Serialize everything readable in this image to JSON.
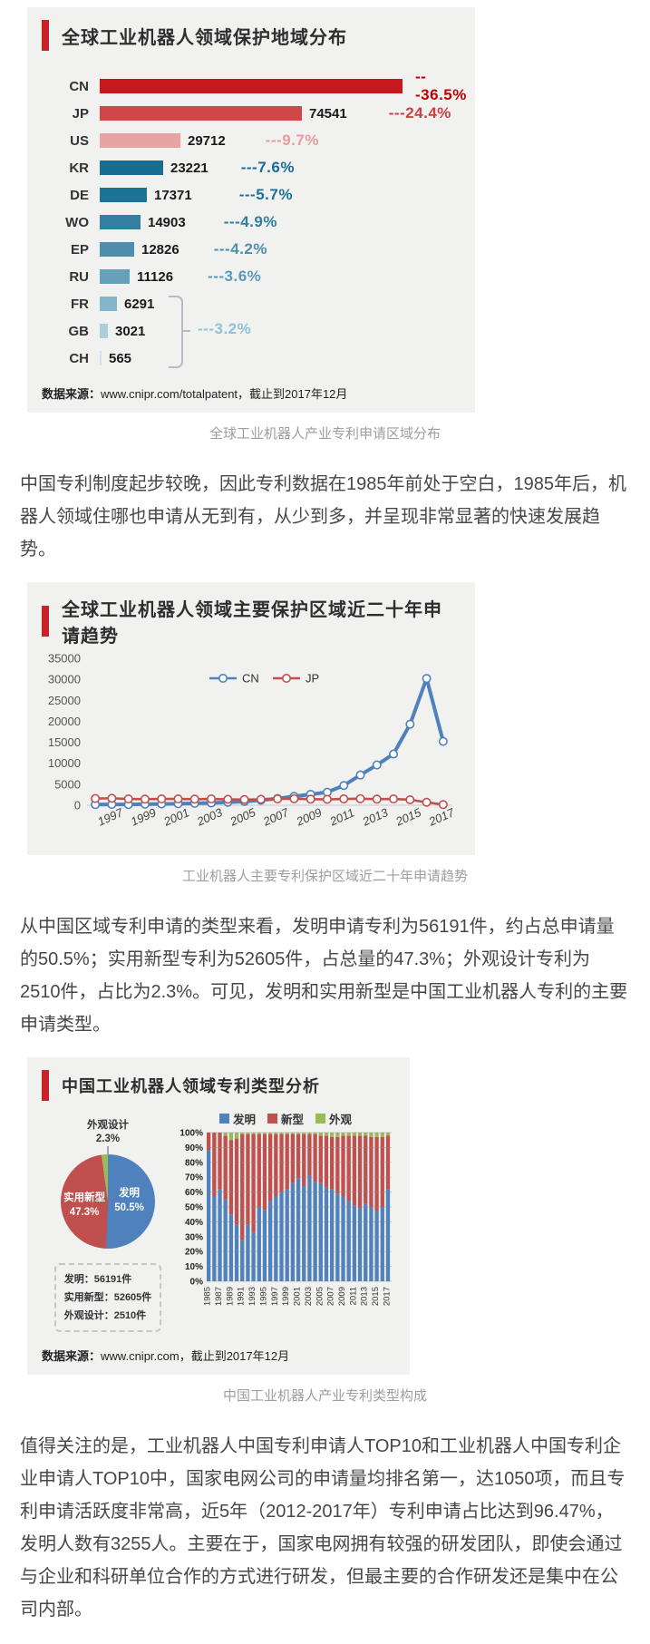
{
  "cards": {
    "c1": {
      "source_label": "数据来源：",
      "source_text": "www.cnipr.com/totalpatent，截止到2017年12月"
    },
    "c3": {
      "source_label": "数据来源：",
      "source_text": "www.cnipr.com，截止到2017年12月",
      "info_lines": [
        "发明：56191件",
        "实用新型：52605件",
        "外观设计：2510件"
      ],
      "legend": [
        "发明",
        "新型",
        "外观"
      ]
    }
  },
  "captions": {
    "c1": "全球工业机器人产业专利申请区域分布",
    "c2": "工业机器人主要专利保护区域近二十年申请趋势",
    "c3": "中国工业机器人产业专利类型构成"
  },
  "paragraphs": {
    "p1": "中国专利制度起步较晚，因此专利数据在1985年前处于空白，1985年后，机器人领域住哪也申请从无到有，从少到多，并呈现非常显著的快速发展趋势。",
    "p2": "从中国区域专利申请的类型来看，发明申请专利为56191件，约占总申请量的50.5%；实用新型专利为52605件，占总量的47.3%；外观设计专利为2510件，占比为2.3%。可见，发明和实用新型是中国工业机器人专利的主要申请类型。",
    "p3": "值得关注的是，工业机器人中国专利申请人TOP10和工业机器人中国专利企业申请人TOP10中，国家电网公司的申请量均排名第一，达1050项，而且专利申请活跃度非常高，近5年（2012-2017年）专利申请占比达到96.47%，发明人数有3255人。主要在于，国家电网拥有较强的研发团队，即使会通过与企业和科研单位合作的方式进行研发，但最主要的合作研发还是集中在公司内部。"
  },
  "chart_data": [
    {
      "type": "bar",
      "title": "全球工业机器人领域保护地域分布",
      "orientation": "horizontal",
      "max_value": 111506,
      "rows": [
        {
          "label": "CN",
          "value": 111506,
          "value_label": "",
          "pct_label": "---36.5%",
          "bar_color": "#c9171e",
          "pct_color": "#c00000",
          "pct_gap": 14
        },
        {
          "label": "JP",
          "value": 74541,
          "value_label": "74541",
          "pct_label": "---24.4%",
          "bar_color": "#d14747",
          "pct_color": "#cf4040",
          "pct_gap": 46
        },
        {
          "label": "US",
          "value": 29712,
          "value_label": "29712",
          "pct_label": "---9.7%",
          "bar_color": "#e8a3a3",
          "pct_color": "#e59d9d",
          "pct_gap": 44
        },
        {
          "label": "KR",
          "value": 23221,
          "value_label": "23221",
          "pct_label": "---7.6%",
          "bar_color": "#196d90",
          "pct_color": "#176d92",
          "pct_gap": 36
        },
        {
          "label": "DE",
          "value": 17371,
          "value_label": "17371",
          "pct_label": "---5.7%",
          "bar_color": "#1d7394",
          "pct_color": "#1d7394",
          "pct_gap": 52
        },
        {
          "label": "WO",
          "value": 14903,
          "value_label": "14903",
          "pct_label": "---4.9%",
          "bar_color": "#337fa2",
          "pct_color": "#2f7fa3",
          "pct_gap": 42
        },
        {
          "label": "EP",
          "value": 12826,
          "value_label": "12826",
          "pct_label": "---4.2%",
          "bar_color": "#4e8fae",
          "pct_color": "#4e8fae",
          "pct_gap": 38
        },
        {
          "label": "RU",
          "value": 11126,
          "value_label": "11126",
          "pct_label": "---3.6%",
          "bar_color": "#66a1bc",
          "pct_color": "#579ab8",
          "pct_gap": 38
        },
        {
          "label": "FR",
          "value": 6291,
          "value_label": "6291",
          "pct_label": "",
          "bar_color": "#85b5cb",
          "pct_color": "",
          "pct_gap": 0
        },
        {
          "label": "GB",
          "value": 3021,
          "value_label": "3021",
          "pct_label": "",
          "bar_color": "#abcddd",
          "pct_color": "",
          "pct_gap": 0
        },
        {
          "label": "CH",
          "value": 565,
          "value_label": "565",
          "pct_label": "",
          "bar_color": "#cfe3ec",
          "pct_color": "",
          "pct_gap": 0
        }
      ],
      "group_bracket": {
        "rows": [
          "FR",
          "GB",
          "CH"
        ],
        "pct_label": "---3.2%",
        "pct_color": "#8ec2d6"
      }
    },
    {
      "type": "line",
      "title": "全球工业机器人领域主要保护区域近二十年申请趋势",
      "x": [
        1996,
        1997,
        1998,
        1999,
        2000,
        2001,
        2002,
        2003,
        2004,
        2005,
        2006,
        2007,
        2008,
        2009,
        2010,
        2011,
        2012,
        2013,
        2014,
        2015,
        2016,
        2017
      ],
      "x_tick_labels": [
        "1997",
        "1999",
        "2001",
        "2003",
        "2005",
        "2007",
        "2009",
        "2011",
        "2013",
        "2015",
        "2017"
      ],
      "ylim": [
        0,
        35000
      ],
      "y_ticks": [
        0,
        5000,
        10000,
        15000,
        20000,
        25000,
        30000,
        35000
      ],
      "grid": false,
      "legend_position": "top-center",
      "series": [
        {
          "name": "CN",
          "color": "#4f81bd",
          "stroke_width": 4,
          "values": [
            150,
            200,
            180,
            250,
            300,
            350,
            450,
            550,
            700,
            900,
            1200,
            1600,
            2100,
            2600,
            3100,
            4700,
            7200,
            9600,
            12200,
            19300,
            30200,
            15200
          ]
        },
        {
          "name": "JP",
          "color": "#c0504d",
          "stroke_width": 2.6,
          "values": [
            1600,
            1650,
            1500,
            1450,
            1500,
            1500,
            1450,
            1500,
            1400,
            1350,
            1400,
            1500,
            1550,
            1450,
            1400,
            1500,
            1550,
            1450,
            1500,
            1300,
            700,
            150
          ]
        }
      ]
    },
    {
      "type": "pie",
      "title": "中国工业机器人领域专利类型分析",
      "slices": [
        {
          "label": "发明",
          "pct": 50.5,
          "pct_label": "50.5%",
          "color": "#4f81bd"
        },
        {
          "label": "实用新型",
          "pct": 47.3,
          "pct_label": "47.3%",
          "color": "#c0504d"
        },
        {
          "label": "外观设计",
          "pct": 2.3,
          "pct_label": "2.3%",
          "color": "#9bbb59"
        }
      ]
    },
    {
      "type": "bar-stacked-100",
      "categories": [
        1985,
        1986,
        1987,
        1988,
        1989,
        1990,
        1991,
        1992,
        1993,
        1994,
        1995,
        1996,
        1997,
        1998,
        1999,
        2000,
        2001,
        2002,
        2003,
        2004,
        2005,
        2006,
        2007,
        2008,
        2009,
        2010,
        2011,
        2012,
        2013,
        2014,
        2015,
        2016,
        2017
      ],
      "x_tick_labels": [
        "1985",
        "1987",
        "1989",
        "1991",
        "1993",
        "1995",
        "1997",
        "1999",
        "2001",
        "2003",
        "2005",
        "2007",
        "2009",
        "2011",
        "2013",
        "2015",
        "2017"
      ],
      "ylim": [
        0,
        100
      ],
      "y_tick_step": 10,
      "grid": true,
      "series": [
        {
          "name": "发明",
          "color": "#4f81bd",
          "values": [
            88,
            57,
            62,
            55,
            45,
            38,
            28,
            38,
            33,
            50,
            48,
            54,
            57,
            60,
            62,
            66,
            69,
            64,
            71,
            67,
            66,
            63,
            62,
            59,
            57,
            54,
            51,
            49,
            52,
            50,
            47,
            50,
            62
          ]
        },
        {
          "name": "新型",
          "color": "#c0504d",
          "values": [
            12,
            43,
            38,
            43,
            50,
            58,
            71,
            61,
            66,
            49,
            51,
            45,
            42,
            39,
            37,
            33,
            30,
            35,
            28,
            32,
            32,
            35,
            35,
            38,
            41,
            44,
            47,
            49,
            46,
            47,
            50,
            47,
            36
          ]
        },
        {
          "name": "外观",
          "color": "#9bbb59",
          "values": [
            0,
            0,
            0,
            2,
            5,
            4,
            1,
            1,
            1,
            1,
            1,
            1,
            1,
            1,
            1,
            1,
            1,
            1,
            1,
            1,
            2,
            2,
            3,
            3,
            2,
            2,
            2,
            2,
            2,
            3,
            3,
            3,
            2
          ]
        }
      ]
    }
  ]
}
